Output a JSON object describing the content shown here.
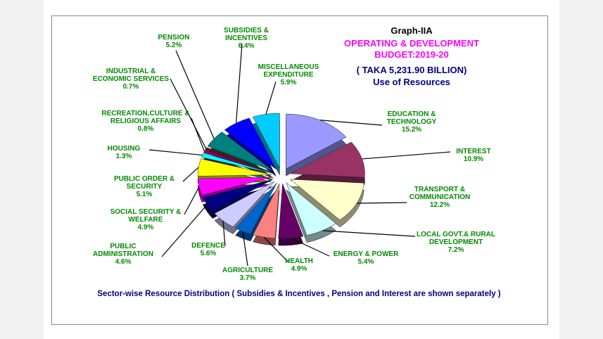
{
  "chart_data": {
    "type": "pie",
    "title": "Graph-IIA",
    "subtitle": "OPERATING & DEVELOPMENT BUDGET:2019-20",
    "subtitle2": "( TAKA 5,231.90 BILLION)",
    "subtitle3": "Use of Resources",
    "caption": "Sector-wise Resource Distribution ( Subsidies  & Incentives ,  Pension and  Interest are shown separately )",
    "categories": [
      "EDUCATION & TECHNOLOGY",
      "INTEREST",
      "TRANSPORT & COMMUNICATION",
      "LOCAL GOVT.& RURAL DEVELOPMENT",
      "ENERGY & POWER",
      "HEALTH",
      "AGRICULTURE",
      "DEFENCE",
      "PUBLIC ADMINISTRATION",
      "SOCIAL SECURITY & WELFARE",
      "PUBLIC ORDER & SECURITY",
      "HOUSING",
      "RECREATION,CULTURE & RELIGIOUS AFFAIRS",
      "INDUSTRIAL & ECONOMIC SERVICES",
      "PENSION",
      "SUBSIDIES & INCENTIVES",
      "MISCELLANEOUS EXPENDITURE"
    ],
    "values": [
      15.2,
      10.9,
      12.2,
      7.2,
      5.4,
      4.9,
      3.7,
      5.6,
      4.6,
      4.9,
      5.1,
      1.3,
      0.8,
      0.7,
      5.2,
      6.4,
      5.9
    ],
    "value_labels": [
      "15.2%",
      "10.9%",
      "12.2%",
      "7.2%",
      "5.4%",
      "4.9%",
      "3.7%",
      "5.6%",
      "4.6%",
      "4.9%",
      "5.1%",
      "1.3%",
      "0.8%",
      "0.7%",
      "5.2%",
      "6.4%",
      "5.9%"
    ],
    "colors": [
      "#9999ff",
      "#993366",
      "#ffffcc",
      "#ccffff",
      "#660066",
      "#ff8080",
      "#0066cc",
      "#ccccff",
      "#000080",
      "#ff00ff",
      "#ffff00",
      "#00ffff",
      "#800080",
      "#800000",
      "#008080",
      "#0000ff",
      "#00ccff"
    ]
  }
}
